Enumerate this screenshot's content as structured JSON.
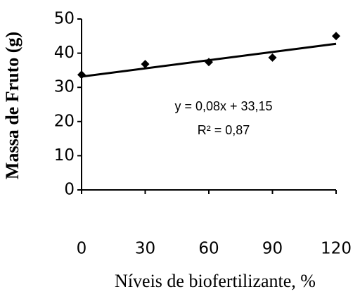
{
  "chart_data": {
    "type": "scatter",
    "x_label": "Níveis de biofertilizante, %",
    "y_label": "Massa de Fruto (g)",
    "x": [
      0,
      30,
      60,
      90,
      120
    ],
    "series": [
      {
        "color": "#000000",
        "values": [
          33.7,
          36.8,
          37.4,
          38.7,
          45
        ]
      }
    ],
    "trendline": {
      "slope": 0.08,
      "intercept": 33.15,
      "color": "#000000"
    },
    "annotations": [
      "y = 0,08x + 33,15",
      "R² = 0,87"
    ],
    "xlim": [
      0,
      120
    ],
    "xticks": [
      0,
      30,
      60,
      90,
      120
    ],
    "ylim": [
      0,
      50
    ],
    "yticks": [
      0,
      10,
      20,
      30,
      40,
      50
    ],
    "grid": false
  }
}
